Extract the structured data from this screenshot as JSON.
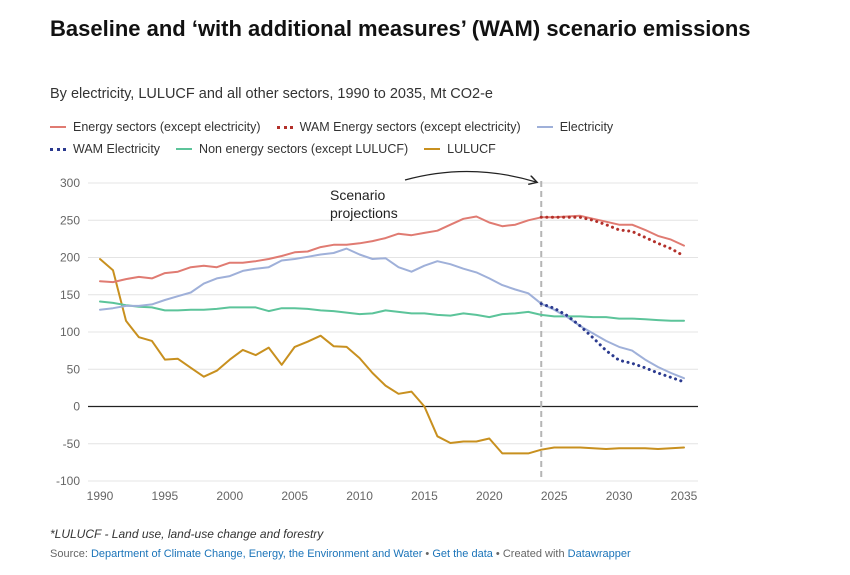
{
  "header": {
    "title": "Baseline and ‘with additional measures’ (WAM) scenario emissions",
    "subtitle": "By electricity, LULUCF and all other sectors, 1990 to 2035, Mt CO2-e"
  },
  "footer": {
    "footnote": "*LULUCF - Land use, land-use change and forestry",
    "source_prefix": "Source: ",
    "source_link": "Department of Climate Change, Energy, the Environment and Water",
    "sep1": " • ",
    "data_link": "Get the data",
    "sep2": " • Created with ",
    "tool_link": "Datawrapper"
  },
  "colors": {
    "energy": "#e07b72",
    "wam_energy": "#b3302a",
    "electricity": "#9fb0d9",
    "wam_electricity": "#2b3a8f",
    "non_energy": "#5cc49a",
    "lulucf": "#c8901f",
    "link": "#1b74b9"
  },
  "chart_data": {
    "type": "line",
    "ylim": [
      -100,
      300
    ],
    "yticks": [
      -100,
      -50,
      0,
      50,
      100,
      150,
      200,
      250,
      300
    ],
    "xticks": [
      1990,
      1995,
      2000,
      2005,
      2010,
      2015,
      2020,
      2025,
      2030,
      2035
    ],
    "grid": true,
    "legend_position": "top",
    "annotation": {
      "text_lines": [
        "Scenario",
        "projections"
      ],
      "marker_year": 2024
    },
    "series": [
      {
        "key": "energy",
        "name": "Energy sectors (except electricity)",
        "style": "solid",
        "x": [
          1990,
          1991,
          1992,
          1993,
          1994,
          1995,
          1996,
          1997,
          1998,
          1999,
          2000,
          2001,
          2002,
          2003,
          2004,
          2005,
          2006,
          2007,
          2008,
          2009,
          2010,
          2011,
          2012,
          2013,
          2014,
          2015,
          2016,
          2017,
          2018,
          2019,
          2020,
          2021,
          2022,
          2023,
          2024,
          2025,
          2026,
          2027,
          2028,
          2029,
          2030,
          2031,
          2032,
          2033,
          2034,
          2035
        ],
        "y": [
          168,
          167,
          171,
          174,
          172,
          179,
          181,
          187,
          189,
          187,
          193,
          193,
          195,
          198,
          202,
          207,
          208,
          214,
          217,
          217,
          219,
          222,
          226,
          232,
          230,
          233,
          236,
          244,
          252,
          255,
          247,
          242,
          244,
          250,
          254,
          254,
          255,
          256,
          252,
          248,
          244,
          244,
          237,
          229,
          224,
          216
        ]
      },
      {
        "key": "wam_energy",
        "name": "WAM Energy sectors (except electricity)",
        "style": "dotted",
        "x": [
          2024,
          2025,
          2026,
          2027,
          2028,
          2029,
          2030,
          2031,
          2032,
          2033,
          2034,
          2035
        ],
        "y": [
          254,
          254,
          254,
          254,
          250,
          244,
          237,
          235,
          227,
          219,
          212,
          202
        ]
      },
      {
        "key": "electricity",
        "name": "Electricity",
        "style": "solid",
        "x": [
          1990,
          1991,
          1992,
          1993,
          1994,
          1995,
          1996,
          1997,
          1998,
          1999,
          2000,
          2001,
          2002,
          2003,
          2004,
          2005,
          2006,
          2007,
          2008,
          2009,
          2010,
          2011,
          2012,
          2013,
          2014,
          2015,
          2016,
          2017,
          2018,
          2019,
          2020,
          2021,
          2022,
          2023,
          2024,
          2025,
          2026,
          2027,
          2028,
          2029,
          2030,
          2031,
          2032,
          2033,
          2034,
          2035
        ],
        "y": [
          130,
          132,
          135,
          135,
          137,
          143,
          148,
          153,
          165,
          172,
          175,
          182,
          185,
          187,
          196,
          198,
          201,
          204,
          206,
          212,
          204,
          198,
          199,
          187,
          181,
          189,
          195,
          191,
          185,
          180,
          172,
          163,
          157,
          152,
          138,
          130,
          120,
          108,
          98,
          88,
          80,
          75,
          63,
          53,
          45,
          38
        ]
      },
      {
        "key": "wam_electricity",
        "name": "WAM Electricity",
        "style": "dotted",
        "x": [
          2024,
          2025,
          2026,
          2027,
          2028,
          2029,
          2030,
          2031,
          2032,
          2033,
          2034,
          2035
        ],
        "y": [
          138,
          132,
          122,
          108,
          92,
          75,
          62,
          58,
          52,
          45,
          39,
          33
        ]
      },
      {
        "key": "non_energy",
        "name": "Non energy sectors (except LULUCF)",
        "style": "solid",
        "x": [
          1990,
          1991,
          1992,
          1993,
          1994,
          1995,
          1996,
          1997,
          1998,
          1999,
          2000,
          2001,
          2002,
          2003,
          2004,
          2005,
          2006,
          2007,
          2008,
          2009,
          2010,
          2011,
          2012,
          2013,
          2014,
          2015,
          2016,
          2017,
          2018,
          2019,
          2020,
          2021,
          2022,
          2023,
          2024,
          2025,
          2026,
          2027,
          2028,
          2029,
          2030,
          2031,
          2032,
          2033,
          2034,
          2035
        ],
        "y": [
          141,
          139,
          136,
          134,
          133,
          129,
          129,
          130,
          130,
          131,
          133,
          133,
          133,
          128,
          132,
          132,
          131,
          129,
          128,
          126,
          124,
          125,
          129,
          127,
          125,
          125,
          123,
          122,
          125,
          123,
          120,
          124,
          125,
          127,
          123,
          121,
          121,
          121,
          120,
          120,
          118,
          118,
          117,
          116,
          115,
          115
        ]
      },
      {
        "key": "lulucf",
        "name": "LULUCF",
        "style": "solid",
        "x": [
          1990,
          1991,
          1992,
          1993,
          1994,
          1995,
          1996,
          1997,
          1998,
          1999,
          2000,
          2001,
          2002,
          2003,
          2004,
          2005,
          2006,
          2007,
          2008,
          2009,
          2010,
          2011,
          2012,
          2013,
          2014,
          2015,
          2016,
          2017,
          2018,
          2019,
          2020,
          2021,
          2022,
          2023,
          2024,
          2025,
          2026,
          2027,
          2028,
          2029,
          2030,
          2031,
          2032,
          2033,
          2034,
          2035
        ],
        "y": [
          198,
          183,
          115,
          93,
          88,
          63,
          64,
          52,
          40,
          48,
          63,
          76,
          69,
          79,
          56,
          80,
          87,
          95,
          81,
          80,
          65,
          45,
          28,
          17,
          20,
          0,
          -40,
          -49,
          -47,
          -47,
          -43,
          -63,
          -63,
          -63,
          -58,
          -55,
          -55,
          -55,
          -56,
          -57,
          -56,
          -56,
          -56,
          -57,
          -56,
          -55
        ]
      }
    ]
  }
}
